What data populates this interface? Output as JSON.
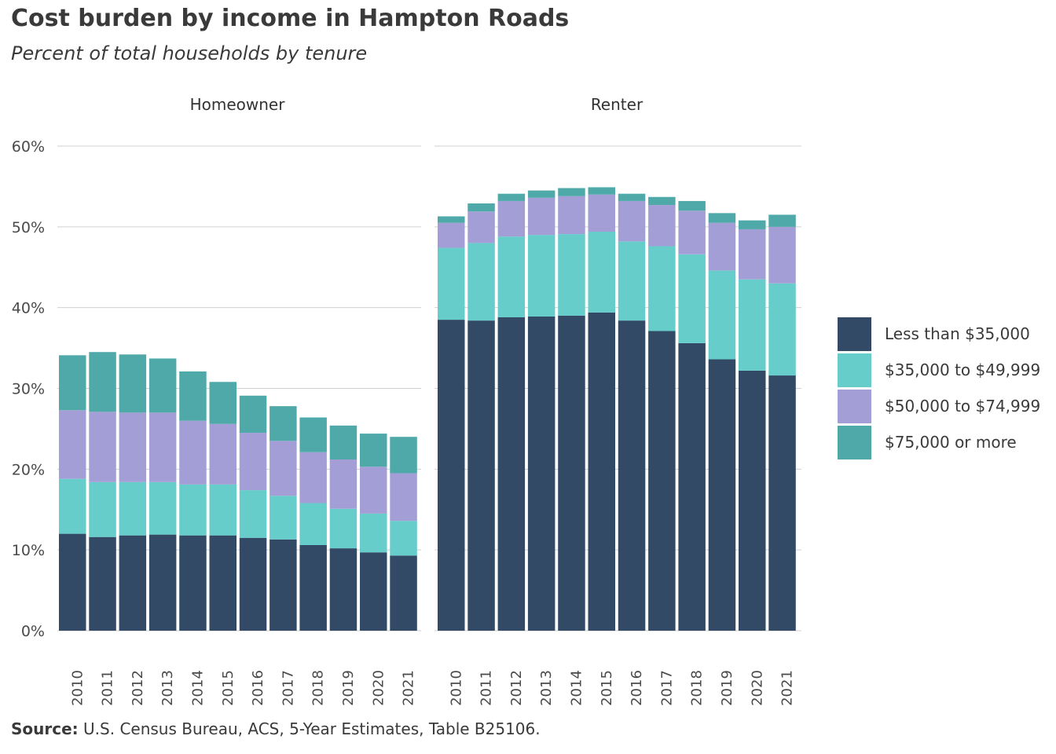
{
  "title": "Cost burden by income in Hampton Roads",
  "subtitle": "Percent of total households by tenure",
  "source": {
    "label": "Source:",
    "text": "U.S. Census Bureau, ACS, 5-Year Estimates, Table B25106."
  },
  "colors": {
    "less_than_35000": "#324a66",
    "35000_to_49999": "#66cdcb",
    "50000_to_74999": "#a39fd6",
    "75000_or_more": "#4ea9a8",
    "grid": "#d0d0d0",
    "text": "#3a3a3a"
  },
  "chart_data": {
    "type": "bar",
    "stacked": true,
    "ylim": [
      0,
      60
    ],
    "yticks": [
      "0%",
      "10%",
      "20%",
      "30%",
      "40%",
      "50%",
      "60%"
    ],
    "categories": [
      "2010",
      "2011",
      "2012",
      "2013",
      "2014",
      "2015",
      "2016",
      "2017",
      "2018",
      "2019",
      "2020",
      "2021"
    ],
    "legend_position": "right",
    "grid": true,
    "legend": [
      {
        "name": "Less than $35,000",
        "color": "#324a66"
      },
      {
        "name": "$35,000 to $49,999",
        "color": "#66cdcb"
      },
      {
        "name": "$50,000 to $74,999",
        "color": "#a39fd6"
      },
      {
        "name": "$75,000 or more",
        "color": "#4ea9a8"
      }
    ],
    "panels": [
      {
        "title": "Homeowner",
        "series": [
          {
            "name": "Less than $35,000",
            "values": [
              12.0,
              11.6,
              11.8,
              11.9,
              11.8,
              11.8,
              11.5,
              11.3,
              10.6,
              10.2,
              9.7,
              9.3
            ]
          },
          {
            "name": "$35,000 to $49,999",
            "values": [
              6.8,
              6.8,
              6.6,
              6.5,
              6.3,
              6.3,
              5.9,
              5.4,
              5.2,
              4.9,
              4.8,
              4.3
            ]
          },
          {
            "name": "$50,000 to $74,999",
            "values": [
              8.5,
              8.7,
              8.6,
              8.6,
              7.9,
              7.5,
              7.1,
              6.8,
              6.3,
              6.1,
              5.8,
              5.9
            ]
          },
          {
            "name": "$75,000 or more",
            "values": [
              6.8,
              7.4,
              7.2,
              6.7,
              6.1,
              5.2,
              4.6,
              4.3,
              4.3,
              4.2,
              4.1,
              4.5
            ]
          }
        ]
      },
      {
        "title": "Renter",
        "series": [
          {
            "name": "Less than $35,000",
            "values": [
              38.5,
              38.4,
              38.8,
              38.9,
              39.0,
              39.4,
              38.4,
              37.1,
              35.6,
              33.6,
              32.2,
              31.6
            ]
          },
          {
            "name": "$35,000 to $49,999",
            "values": [
              8.9,
              9.6,
              10.0,
              10.1,
              10.1,
              10.0,
              9.8,
              10.5,
              11.0,
              11.0,
              11.3,
              11.4
            ]
          },
          {
            "name": "$50,000 to $74,999",
            "values": [
              3.1,
              3.9,
              4.4,
              4.6,
              4.7,
              4.6,
              5.0,
              5.1,
              5.4,
              5.9,
              6.2,
              7.0
            ]
          },
          {
            "name": "$75,000 or more",
            "values": [
              0.8,
              1.0,
              0.9,
              0.9,
              1.0,
              0.9,
              0.9,
              1.0,
              1.2,
              1.2,
              1.1,
              1.5
            ]
          }
        ]
      }
    ]
  }
}
